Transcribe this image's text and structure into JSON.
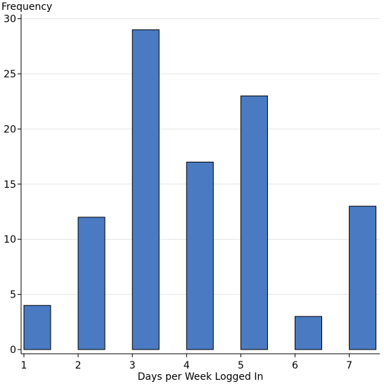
{
  "chart_data": {
    "type": "bar",
    "title": "",
    "xlabel": "Days per Week Logged In",
    "ylabel": "Frequency",
    "x": [
      1,
      2,
      3,
      4,
      5,
      6,
      7
    ],
    "values": [
      4,
      12,
      29,
      17,
      23,
      3,
      13
    ],
    "x_tick_labels": [
      "1",
      "2",
      "3",
      "4",
      "5",
      "6",
      "7"
    ],
    "y_ticks": [
      0,
      5,
      10,
      15,
      20,
      25,
      30
    ],
    "xlim": [
      1,
      7.5
    ],
    "ylim": [
      0,
      30.5
    ],
    "grid": true,
    "colors": {
      "bar_fill": "#4a7bc2",
      "bar_stroke": "#000000",
      "grid": "#e4e4e4",
      "axis": "#000000"
    }
  }
}
